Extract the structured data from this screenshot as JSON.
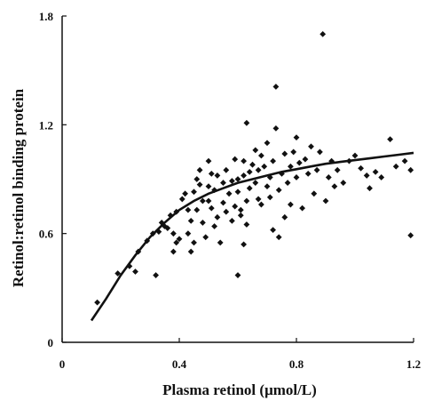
{
  "chart_data": {
    "type": "scatter",
    "title": "",
    "xlabel": "Plasma retinol (μmol/L)",
    "ylabel": "Retinol:retinol binding protein",
    "xlim": [
      0,
      1.2
    ],
    "ylim": [
      0,
      1.8
    ],
    "x_ticks": [
      "0",
      "0.4",
      "0.8",
      "1.2"
    ],
    "y_ticks": [
      "0",
      "0.6",
      "1.2",
      "1.8"
    ],
    "grid": false,
    "legend": "none",
    "marker": "diamond",
    "marker_color": "#111111",
    "points": [
      [
        0.12,
        0.22
      ],
      [
        0.19,
        0.38
      ],
      [
        0.23,
        0.42
      ],
      [
        0.25,
        0.39
      ],
      [
        0.26,
        0.5
      ],
      [
        0.29,
        0.56
      ],
      [
        0.31,
        0.6
      ],
      [
        0.32,
        0.37
      ],
      [
        0.33,
        0.61
      ],
      [
        0.34,
        0.66
      ],
      [
        0.35,
        0.64
      ],
      [
        0.36,
        0.63
      ],
      [
        0.37,
        0.7
      ],
      [
        0.38,
        0.6
      ],
      [
        0.38,
        0.5
      ],
      [
        0.39,
        0.55
      ],
      [
        0.39,
        0.72
      ],
      [
        0.4,
        0.57
      ],
      [
        0.41,
        0.79
      ],
      [
        0.42,
        0.82
      ],
      [
        0.43,
        0.73
      ],
      [
        0.43,
        0.6
      ],
      [
        0.44,
        0.67
      ],
      [
        0.44,
        0.5
      ],
      [
        0.45,
        0.83
      ],
      [
        0.45,
        0.55
      ],
      [
        0.46,
        0.9
      ],
      [
        0.46,
        0.73
      ],
      [
        0.47,
        0.95
      ],
      [
        0.47,
        0.87
      ],
      [
        0.48,
        0.78
      ],
      [
        0.48,
        0.66
      ],
      [
        0.49,
        0.58
      ],
      [
        0.5,
        0.86
      ],
      [
        0.5,
        1.0
      ],
      [
        0.5,
        0.78
      ],
      [
        0.51,
        0.93
      ],
      [
        0.51,
        0.74
      ],
      [
        0.52,
        0.84
      ],
      [
        0.52,
        0.64
      ],
      [
        0.53,
        0.69
      ],
      [
        0.53,
        0.92
      ],
      [
        0.54,
        0.55
      ],
      [
        0.55,
        0.77
      ],
      [
        0.55,
        0.88
      ],
      [
        0.56,
        0.95
      ],
      [
        0.56,
        0.72
      ],
      [
        0.57,
        0.82
      ],
      [
        0.58,
        0.89
      ],
      [
        0.58,
        0.67
      ],
      [
        0.59,
        1.01
      ],
      [
        0.59,
        0.75
      ],
      [
        0.6,
        0.83
      ],
      [
        0.6,
        0.9
      ],
      [
        0.6,
        0.37
      ],
      [
        0.61,
        0.73
      ],
      [
        0.61,
        0.7
      ],
      [
        0.62,
        0.92
      ],
      [
        0.62,
        1.0
      ],
      [
        0.62,
        0.54
      ],
      [
        0.63,
        1.21
      ],
      [
        0.63,
        0.78
      ],
      [
        0.63,
        0.65
      ],
      [
        0.64,
        0.85
      ],
      [
        0.64,
        0.94
      ],
      [
        0.65,
        0.98
      ],
      [
        0.66,
        0.88
      ],
      [
        0.66,
        1.06
      ],
      [
        0.67,
        0.79
      ],
      [
        0.67,
        0.95
      ],
      [
        0.68,
        1.03
      ],
      [
        0.68,
        0.76
      ],
      [
        0.69,
        0.97
      ],
      [
        0.7,
        0.86
      ],
      [
        0.7,
        1.1
      ],
      [
        0.71,
        0.8
      ],
      [
        0.71,
        0.91
      ],
      [
        0.72,
        1.0
      ],
      [
        0.72,
        0.62
      ],
      [
        0.73,
        1.41
      ],
      [
        0.73,
        1.18
      ],
      [
        0.74,
        0.58
      ],
      [
        0.74,
        0.84
      ],
      [
        0.75,
        0.93
      ],
      [
        0.76,
        1.04
      ],
      [
        0.76,
        0.69
      ],
      [
        0.77,
        0.88
      ],
      [
        0.78,
        0.97
      ],
      [
        0.78,
        0.76
      ],
      [
        0.79,
        1.05
      ],
      [
        0.8,
        0.91
      ],
      [
        0.8,
        1.13
      ],
      [
        0.81,
        0.99
      ],
      [
        0.82,
        0.74
      ],
      [
        0.83,
        1.01
      ],
      [
        0.84,
        0.93
      ],
      [
        0.85,
        1.08
      ],
      [
        0.86,
        0.82
      ],
      [
        0.87,
        0.95
      ],
      [
        0.88,
        1.05
      ],
      [
        0.89,
        1.7
      ],
      [
        0.9,
        0.78
      ],
      [
        0.91,
        0.91
      ],
      [
        0.92,
        1.0
      ],
      [
        0.93,
        0.86
      ],
      [
        0.94,
        0.95
      ],
      [
        0.96,
        0.88
      ],
      [
        0.98,
        1.0
      ],
      [
        1.0,
        1.03
      ],
      [
        1.02,
        0.96
      ],
      [
        1.04,
        0.92
      ],
      [
        1.05,
        0.85
      ],
      [
        1.07,
        0.94
      ],
      [
        1.09,
        0.91
      ],
      [
        1.12,
        1.12
      ],
      [
        1.14,
        0.97
      ],
      [
        1.17,
        1.0
      ],
      [
        1.19,
        0.95
      ],
      [
        1.19,
        0.59
      ]
    ],
    "fit_curve": [
      [
        0.1,
        0.12
      ],
      [
        0.15,
        0.24
      ],
      [
        0.2,
        0.37
      ],
      [
        0.25,
        0.48
      ],
      [
        0.3,
        0.58
      ],
      [
        0.35,
        0.66
      ],
      [
        0.4,
        0.73
      ],
      [
        0.45,
        0.78
      ],
      [
        0.5,
        0.82
      ],
      [
        0.55,
        0.85
      ],
      [
        0.6,
        0.88
      ],
      [
        0.65,
        0.9
      ],
      [
        0.7,
        0.92
      ],
      [
        0.75,
        0.94
      ],
      [
        0.8,
        0.955
      ],
      [
        0.85,
        0.97
      ],
      [
        0.9,
        0.985
      ],
      [
        0.95,
        0.995
      ],
      [
        1.0,
        1.005
      ],
      [
        1.05,
        1.015
      ],
      [
        1.1,
        1.025
      ],
      [
        1.15,
        1.035
      ],
      [
        1.2,
        1.045
      ]
    ]
  }
}
